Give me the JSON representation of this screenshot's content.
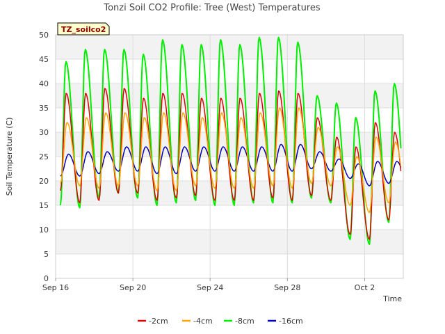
{
  "chart_data": {
    "type": "line",
    "title": "Tonzi Soil CO2 Profile: Tree (West) Temperatures",
    "xlabel": "Time",
    "ylabel": "Soil Temperature (C)",
    "badge": "TZ_soilco2",
    "xlim": [
      "2024-09-16",
      "2024-10-04"
    ],
    "ylim": [
      0,
      50
    ],
    "x_ticks": [
      "Sep 16",
      "Sep 20",
      "Sep 24",
      "Sep 28",
      "Oct 2"
    ],
    "y_ticks": [
      0,
      5,
      10,
      15,
      20,
      25,
      30,
      35,
      40,
      45,
      50
    ],
    "grid": true,
    "legend_position": "bottom",
    "daily_minmax": {
      "days": [
        "2024-09-16",
        "2024-09-17",
        "2024-09-18",
        "2024-09-19",
        "2024-09-20",
        "2024-09-21",
        "2024-09-22",
        "2024-09-23",
        "2024-09-24",
        "2024-09-25",
        "2024-09-26",
        "2024-09-27",
        "2024-09-28",
        "2024-09-29",
        "2024-09-30",
        "2024-10-01",
        "2024-10-02",
        "2024-10-03"
      ],
      "series": [
        {
          "name": "-2cm",
          "color": "#dd0000",
          "min": [
            18,
            15.5,
            16,
            17.5,
            17.5,
            16,
            16.5,
            17,
            16,
            16,
            16,
            16.5,
            16,
            17,
            16,
            9,
            8,
            12
          ],
          "max": [
            38,
            38,
            39,
            39,
            37,
            38,
            38,
            37,
            37,
            37,
            38,
            38.5,
            38,
            33,
            29,
            27,
            32,
            30
          ]
        },
        {
          "name": "-4cm",
          "color": "#ffa500",
          "min": [
            19.5,
            19,
            18.5,
            19,
            19,
            18,
            18,
            19,
            18.5,
            18.5,
            18.5,
            19,
            18.5,
            19.5,
            19,
            15,
            13.5,
            15.5
          ],
          "max": [
            32,
            33,
            34,
            34,
            33,
            34,
            34,
            33,
            34,
            33,
            34,
            35,
            35,
            31,
            27,
            25,
            29,
            28
          ]
        },
        {
          "name": "-8cm",
          "color": "#00ee00",
          "min": [
            15,
            14.5,
            16.5,
            17.5,
            16.5,
            15,
            15.5,
            16,
            15,
            15,
            15.5,
            15.5,
            15.5,
            16.5,
            15.5,
            8,
            7,
            11.5
          ],
          "max": [
            44.5,
            47,
            47,
            47,
            46,
            49,
            48,
            48,
            49,
            48,
            49.5,
            49.5,
            48.5,
            37.5,
            36,
            33,
            38.5,
            40
          ]
        },
        {
          "name": "-16cm",
          "color": "#0000bb",
          "min": [
            21,
            21,
            21.5,
            22,
            22,
            21.5,
            21.5,
            22,
            22,
            22,
            22,
            22,
            22,
            22.5,
            22,
            20.5,
            19,
            19.5
          ],
          "max": [
            25.5,
            26,
            26,
            27,
            27,
            27,
            27,
            27,
            27,
            27,
            27,
            27.5,
            27.5,
            26,
            24.5,
            23.5,
            24,
            24
          ]
        }
      ]
    }
  }
}
